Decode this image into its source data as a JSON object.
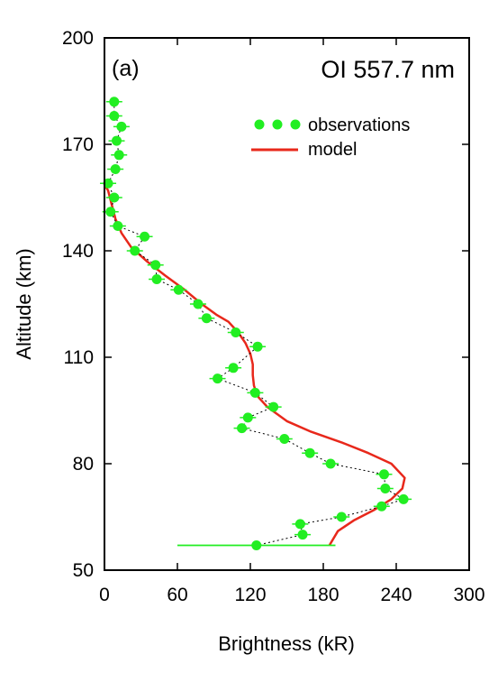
{
  "chart_data": {
    "type": "scatter",
    "panel_label": "(a)",
    "title": "OI 557.7 nm",
    "xlabel": "Brightness (kR)",
    "ylabel": "Altitude (km)",
    "xlim": [
      0,
      300
    ],
    "ylim": [
      50,
      200
    ],
    "xticks": [
      0,
      60,
      120,
      180,
      240,
      300
    ],
    "yticks": [
      50,
      80,
      110,
      140,
      170,
      200
    ],
    "grid": false,
    "legend_position": "top-right",
    "colors": {
      "observations": "#22ee22",
      "model": "#e8281b",
      "connector": "#000000"
    },
    "series": [
      {
        "name": "observations",
        "type": "scatter",
        "points": [
          [
            8,
            182
          ],
          [
            8,
            178
          ],
          [
            14,
            175
          ],
          [
            10,
            171
          ],
          [
            12,
            167
          ],
          [
            9,
            163
          ],
          [
            3,
            159
          ],
          [
            8,
            155
          ],
          [
            5,
            151
          ],
          [
            11,
            147
          ],
          [
            33,
            144
          ],
          [
            25,
            140
          ],
          [
            42,
            136
          ],
          [
            43,
            132
          ],
          [
            61,
            129
          ],
          [
            77,
            125
          ],
          [
            84,
            121
          ],
          [
            108,
            117
          ],
          [
            126,
            113
          ],
          [
            106,
            107
          ],
          [
            93,
            104
          ],
          [
            124,
            100
          ],
          [
            139,
            96
          ],
          [
            118,
            93
          ],
          [
            113,
            90
          ],
          [
            148,
            87
          ],
          [
            169,
            83
          ],
          [
            186,
            80
          ],
          [
            230,
            77
          ],
          [
            231,
            73
          ],
          [
            246,
            70
          ],
          [
            228,
            68
          ],
          [
            195,
            65
          ],
          [
            161,
            63
          ],
          [
            163,
            60
          ],
          [
            125,
            57
          ]
        ],
        "x_error": [
          null,
          null,
          null,
          null,
          null,
          null,
          null,
          null,
          null,
          null,
          null,
          null,
          null,
          null,
          null,
          null,
          null,
          null,
          null,
          null,
          null,
          null,
          null,
          null,
          null,
          null,
          null,
          null,
          null,
          null,
          null,
          null,
          null,
          null,
          null,
          [
            60,
            190
          ]
        ]
      },
      {
        "name": "model",
        "type": "line",
        "points": [
          [
            -1,
            159
          ],
          [
            3,
            157
          ],
          [
            6,
            153
          ],
          [
            9,
            149
          ],
          [
            14,
            145
          ],
          [
            22,
            141
          ],
          [
            35,
            137
          ],
          [
            50,
            133
          ],
          [
            66,
            129
          ],
          [
            80,
            125
          ],
          [
            92,
            122
          ],
          [
            102,
            120
          ],
          [
            110,
            117
          ],
          [
            116,
            114
          ],
          [
            120,
            111
          ],
          [
            122,
            108
          ],
          [
            122,
            105
          ],
          [
            123,
            102
          ],
          [
            126,
            99
          ],
          [
            134,
            96
          ],
          [
            150,
            92
          ],
          [
            170,
            89
          ],
          [
            195,
            86
          ],
          [
            217,
            83
          ],
          [
            236,
            80
          ],
          [
            247,
            76
          ],
          [
            245,
            73
          ],
          [
            236,
            70
          ],
          [
            222,
            67
          ],
          [
            205,
            64
          ],
          [
            192,
            61
          ],
          [
            185,
            57
          ]
        ]
      }
    ]
  }
}
